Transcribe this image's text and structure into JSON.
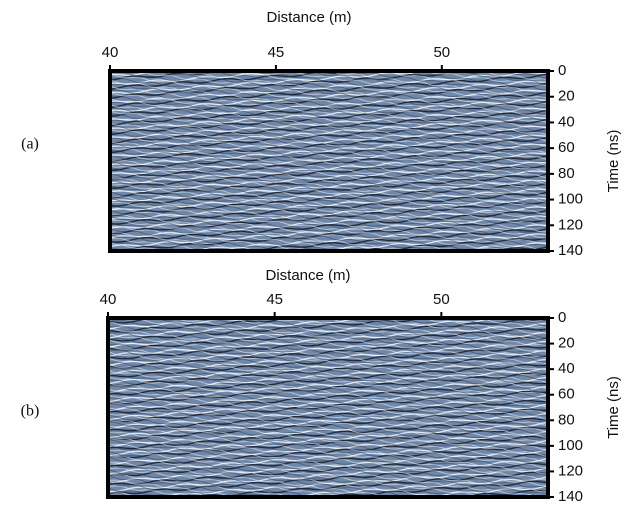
{
  "chart_data": [
    {
      "type": "radargram",
      "panel_label": "(a)",
      "xlabel": "Distance (m)",
      "ylabel": "Time (ns)",
      "xlim": [
        40,
        53.2
      ],
      "xticks": [
        40,
        45,
        50
      ],
      "ylim": [
        0,
        140
      ],
      "yticks": [
        0,
        20,
        40,
        60,
        80,
        100,
        120,
        140
      ]
    },
    {
      "type": "radargram",
      "panel_label": "(b)",
      "xlabel": "Distance (m)",
      "ylabel": "Time (ns)",
      "xlim": [
        40,
        53.2
      ],
      "xticks": [
        40,
        45,
        50
      ],
      "ylim": [
        0,
        140
      ],
      "yticks": [
        0,
        20,
        40,
        60,
        80,
        100,
        120,
        140
      ]
    }
  ]
}
